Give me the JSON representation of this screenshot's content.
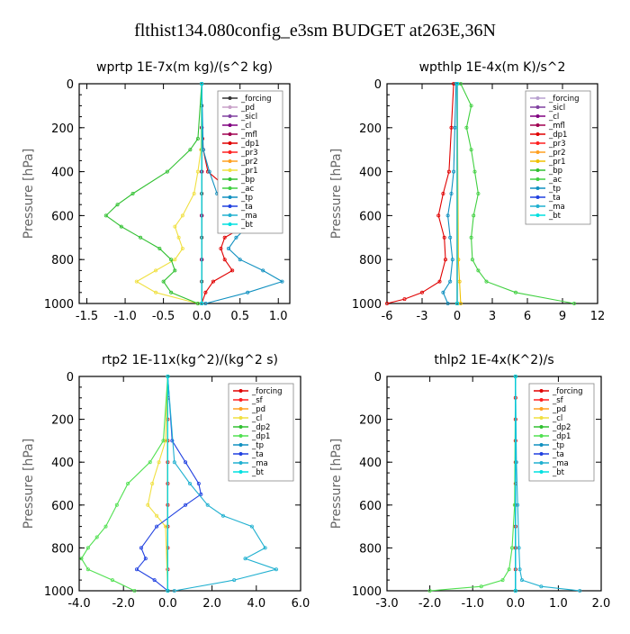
{
  "figure_title": "flthist134.080config_e3sm  BUDGET at263E,36N",
  "chart_data": [
    {
      "type": "line",
      "title": "wprtp   1E-7x(m kg)/(s^2 kg)",
      "ylabel": "Pressure [hPa]",
      "xlim": [
        -1.6,
        1.15
      ],
      "ylim": [
        1000,
        0
      ],
      "xticks": [
        -1.5,
        -1.0,
        -0.5,
        0.0,
        0.5,
        1.0
      ],
      "xtick_labels": [
        "-1.5",
        "-1.0",
        "-0.5",
        "0.0",
        "0.5",
        "1.0"
      ],
      "yticks": [
        0,
        200,
        400,
        600,
        800,
        1000
      ],
      "legend_position": "top-right",
      "series": [
        {
          "name": "_forcing",
          "color": "#333333",
          "y": [
            0,
            100,
            200,
            300,
            400,
            500,
            600,
            700,
            800,
            900,
            1000
          ],
          "x": [
            0,
            0,
            0,
            0,
            0,
            0,
            0,
            0,
            0,
            0,
            0
          ]
        },
        {
          "name": "_pd",
          "color": "#c8a0c8",
          "y": [
            0,
            200,
            400,
            600,
            800,
            1000
          ],
          "x": [
            0,
            0,
            0,
            0,
            0,
            0
          ]
        },
        {
          "name": "_sicl",
          "color": "#8040a0",
          "y": [
            0,
            200,
            400,
            600,
            800,
            1000
          ],
          "x": [
            0,
            0,
            0,
            0,
            0,
            0
          ]
        },
        {
          "name": "_cl",
          "color": "#800080",
          "y": [
            0,
            200,
            400,
            600,
            800,
            1000
          ],
          "x": [
            0,
            0,
            0,
            0,
            0,
            0
          ]
        },
        {
          "name": "_mfl",
          "color": "#a00050",
          "y": [
            0,
            200,
            400,
            600,
            800,
            1000
          ],
          "x": [
            0,
            0,
            0,
            0,
            0,
            0
          ]
        },
        {
          "name": "_dp1",
          "color": "#e00000",
          "y": [
            0,
            250,
            300,
            400,
            450,
            500,
            550,
            600,
            650,
            700,
            750,
            800,
            850,
            900,
            950,
            1000
          ],
          "x": [
            0,
            0.01,
            0.02,
            0.08,
            0.25,
            0.45,
            0.65,
            0.75,
            0.55,
            0.3,
            0.25,
            0.3,
            0.4,
            0.15,
            0.05,
            0
          ]
        },
        {
          "name": "_pr3",
          "color": "#ff2020",
          "y": [
            0,
            1000
          ],
          "x": [
            0,
            0
          ]
        },
        {
          "name": "_pr2",
          "color": "#ffa020",
          "y": [
            0,
            1000
          ],
          "x": [
            0,
            0
          ]
        },
        {
          "name": "_pr1",
          "color": "#f0e040",
          "y": [
            0,
            300,
            400,
            500,
            600,
            650,
            700,
            750,
            800,
            850,
            900,
            950,
            1000
          ],
          "x": [
            0,
            -0.01,
            -0.05,
            -0.1,
            -0.25,
            -0.35,
            -0.3,
            -0.25,
            -0.35,
            -0.6,
            -0.85,
            -0.6,
            -0.05
          ]
        },
        {
          "name": "_bp",
          "color": "#30c030",
          "y": [
            0,
            250,
            300,
            400,
            500,
            550,
            600,
            650,
            700,
            750,
            800,
            850,
            900,
            950,
            1000
          ],
          "x": [
            0,
            -0.05,
            -0.15,
            -0.45,
            -0.9,
            -1.1,
            -1.25,
            -1.05,
            -0.8,
            -0.55,
            -0.4,
            -0.35,
            -0.5,
            -0.4,
            -0.05
          ]
        },
        {
          "name": "_ac",
          "color": "#40d040",
          "y": [
            0,
            1000
          ],
          "x": [
            0,
            0
          ]
        },
        {
          "name": "_tp",
          "color": "#1090c0",
          "y": [
            0,
            300,
            400,
            500,
            550,
            600,
            650,
            700,
            750,
            800,
            850,
            900,
            950,
            1000
          ],
          "x": [
            0,
            0.02,
            0.1,
            0.2,
            0.35,
            0.55,
            0.6,
            0.45,
            0.35,
            0.5,
            0.8,
            1.05,
            0.6,
            0.05
          ]
        },
        {
          "name": "_ta",
          "color": "#2040e0",
          "y": [
            0,
            1000
          ],
          "x": [
            0,
            0
          ]
        },
        {
          "name": "_ma",
          "color": "#20b0d0",
          "y": [
            0,
            1000
          ],
          "x": [
            0,
            0
          ]
        },
        {
          "name": "_bt",
          "color": "#00e0e0",
          "y": [
            0,
            1000
          ],
          "x": [
            0,
            0
          ]
        }
      ]
    },
    {
      "type": "line",
      "title": "wpthlp   1E-4x(m K)/s^2",
      "ylabel": "Pressure [hPa]",
      "xlim": [
        -6,
        12
      ],
      "ylim": [
        1000,
        0
      ],
      "xticks": [
        -6,
        -3,
        0,
        3,
        6,
        9,
        12
      ],
      "xtick_labels": [
        "-6",
        "-3",
        "0",
        "3",
        "6",
        "9",
        "12"
      ],
      "yticks": [
        0,
        200,
        400,
        600,
        800,
        1000
      ],
      "legend_position": "top-right",
      "series": [
        {
          "name": "_forcing",
          "color": "#b8a0d0",
          "y": [
            0,
            1000
          ],
          "x": [
            0,
            0
          ]
        },
        {
          "name": "_sicl",
          "color": "#8040a0",
          "y": [
            0,
            1000
          ],
          "x": [
            0,
            0
          ]
        },
        {
          "name": "_cl",
          "color": "#800080",
          "y": [
            0,
            1000
          ],
          "x": [
            0,
            0
          ]
        },
        {
          "name": "_mfl",
          "color": "#a00050",
          "y": [
            0,
            1000
          ],
          "x": [
            0,
            0
          ]
        },
        {
          "name": "_dp1",
          "color": "#e00000",
          "y": [
            0,
            200,
            400,
            500,
            600,
            700,
            800,
            900,
            950,
            980,
            1000
          ],
          "x": [
            -0.3,
            -0.5,
            -0.7,
            -1.2,
            -1.6,
            -1.1,
            -1.0,
            -1.5,
            -3.0,
            -4.5,
            -6.0
          ]
        },
        {
          "name": "_pr3",
          "color": "#ff2020",
          "y": [
            0,
            1000
          ],
          "x": [
            0,
            0
          ]
        },
        {
          "name": "_pr2",
          "color": "#ffa020",
          "y": [
            0,
            1000
          ],
          "x": [
            0,
            0
          ]
        },
        {
          "name": "_pr1",
          "color": "#f0c000",
          "y": [
            0,
            800,
            900,
            1000
          ],
          "x": [
            0,
            0.1,
            0.2,
            0.3
          ]
        },
        {
          "name": "_bp",
          "color": "#30c030",
          "y": [
            0,
            1000
          ],
          "x": [
            0,
            0
          ]
        },
        {
          "name": "_ac",
          "color": "#40d040",
          "y": [
            0,
            100,
            200,
            300,
            400,
            500,
            600,
            700,
            800,
            850,
            900,
            950,
            1000
          ],
          "x": [
            0.3,
            1.2,
            0.8,
            1.2,
            1.5,
            1.8,
            1.4,
            1.2,
            1.3,
            1.8,
            2.5,
            5.0,
            10.0
          ]
        },
        {
          "name": "_tp",
          "color": "#1090c0",
          "y": [
            0,
            200,
            400,
            500,
            600,
            700,
            800,
            900,
            950,
            1000
          ],
          "x": [
            -0.1,
            -0.2,
            -0.3,
            -0.5,
            -0.8,
            -0.6,
            -0.4,
            -0.6,
            -1.2,
            -0.8
          ]
        },
        {
          "name": "_ta",
          "color": "#2040e0",
          "y": [
            0,
            1000
          ],
          "x": [
            0,
            0
          ]
        },
        {
          "name": "_ma",
          "color": "#20b0d0",
          "y": [
            0,
            1000
          ],
          "x": [
            0,
            0
          ]
        },
        {
          "name": "_bt",
          "color": "#00e0e0",
          "y": [
            0,
            1000
          ],
          "x": [
            0,
            0
          ]
        }
      ]
    },
    {
      "type": "line",
      "title": "rtp2   1E-11x(kg^2)/(kg^2 s)",
      "ylabel": "Pressure [hPa]",
      "xlim": [
        -4.0,
        6.0
      ],
      "ylim": [
        1000,
        0
      ],
      "xticks": [
        -4.0,
        -2.0,
        0.0,
        2.0,
        4.0,
        6.0
      ],
      "xtick_labels": [
        "-4.0",
        "-2.0",
        "0.0",
        "2.0",
        "4.0",
        "6.0"
      ],
      "yticks": [
        0,
        200,
        400,
        600,
        800,
        1000
      ],
      "legend_position": "top-right",
      "series": [
        {
          "name": "_forcing",
          "color": "#e00000",
          "y": [
            0,
            100,
            200,
            300,
            400,
            500,
            600,
            700,
            800,
            900,
            1000
          ],
          "x": [
            0,
            0,
            0,
            0,
            0,
            0,
            0,
            0,
            0,
            0,
            0
          ]
        },
        {
          "name": "_sf",
          "color": "#ff2020",
          "y": [
            0,
            1000
          ],
          "x": [
            0,
            0
          ]
        },
        {
          "name": "_pd",
          "color": "#ffa020",
          "y": [
            0,
            1000
          ],
          "x": [
            0,
            0
          ]
        },
        {
          "name": "_cl",
          "color": "#f0e040",
          "y": [
            0,
            300,
            400,
            500,
            600,
            650,
            700,
            1000
          ],
          "x": [
            0,
            -0.1,
            -0.4,
            -0.7,
            -0.9,
            -0.5,
            -0.1,
            0
          ]
        },
        {
          "name": "_dp2",
          "color": "#30c030",
          "y": [
            0,
            1000
          ],
          "x": [
            0,
            0
          ]
        },
        {
          "name": "_dp1",
          "color": "#50e050",
          "y": [
            0,
            300,
            400,
            500,
            600,
            700,
            750,
            800,
            850,
            900,
            950,
            1000
          ],
          "x": [
            0,
            -0.2,
            -0.8,
            -1.8,
            -2.3,
            -2.8,
            -3.2,
            -3.6,
            -3.9,
            -3.6,
            -2.5,
            -1.5
          ]
        },
        {
          "name": "_tp",
          "color": "#1090c0",
          "y": [
            0,
            1000
          ],
          "x": [
            0,
            0
          ]
        },
        {
          "name": "_ta",
          "color": "#2040e0",
          "y": [
            0,
            300,
            400,
            500,
            550,
            600,
            700,
            800,
            850,
            900,
            950,
            1000
          ],
          "x": [
            0,
            0.2,
            0.8,
            1.4,
            1.5,
            0.8,
            -0.5,
            -1.2,
            -1.0,
            -1.4,
            -0.6,
            0
          ]
        },
        {
          "name": "_ma",
          "color": "#20b0d0",
          "y": [
            0,
            400,
            500,
            600,
            650,
            700,
            800,
            850,
            900,
            950,
            1000
          ],
          "x": [
            0,
            0.3,
            1.0,
            1.8,
            2.5,
            3.8,
            4.4,
            3.5,
            4.9,
            3.0,
            0.3
          ]
        },
        {
          "name": "_bt",
          "color": "#00e0e0",
          "y": [
            0,
            1000
          ],
          "x": [
            0,
            0
          ]
        }
      ]
    },
    {
      "type": "line",
      "title": "thlp2   1E-4x(K^2)/s",
      "ylabel": "Pressure [hPa]",
      "xlim": [
        -3.0,
        2.0
      ],
      "ylim": [
        1000,
        0
      ],
      "xticks": [
        -3.0,
        -2.0,
        -1.0,
        0.0,
        1.0,
        2.0
      ],
      "xtick_labels": [
        "-3.0",
        "-2.0",
        "-1.0",
        "0.0",
        "1.0",
        "2.0"
      ],
      "yticks": [
        0,
        200,
        400,
        600,
        800,
        1000
      ],
      "legend_position": "top-right",
      "series": [
        {
          "name": "_forcing",
          "color": "#e00000",
          "y": [
            0,
            100,
            200,
            300,
            400,
            500,
            600,
            700,
            800,
            900,
            1000
          ],
          "x": [
            0,
            0,
            0,
            0,
            0,
            0,
            0,
            0,
            0,
            0,
            0
          ]
        },
        {
          "name": "_sf",
          "color": "#ff2020",
          "y": [
            0,
            1000
          ],
          "x": [
            0,
            0
          ]
        },
        {
          "name": "_pd",
          "color": "#ffa020",
          "y": [
            0,
            1000
          ],
          "x": [
            0,
            0
          ]
        },
        {
          "name": "_cl",
          "color": "#f0e040",
          "y": [
            0,
            1000
          ],
          "x": [
            0,
            0
          ]
        },
        {
          "name": "_dp2",
          "color": "#30c030",
          "y": [
            0,
            1000
          ],
          "x": [
            0,
            0
          ]
        },
        {
          "name": "_dp1",
          "color": "#50e050",
          "y": [
            0,
            600,
            800,
            900,
            950,
            980,
            1000
          ],
          "x": [
            0,
            -0.02,
            -0.08,
            -0.15,
            -0.3,
            -0.8,
            -2.0
          ]
        },
        {
          "name": "_tp",
          "color": "#1090c0",
          "y": [
            0,
            1000
          ],
          "x": [
            0,
            0
          ]
        },
        {
          "name": "_ta",
          "color": "#2040e0",
          "y": [
            0,
            1000
          ],
          "x": [
            0,
            0
          ]
        },
        {
          "name": "_ma",
          "color": "#20b0d0",
          "y": [
            0,
            400,
            600,
            800,
            900,
            950,
            980,
            1000
          ],
          "x": [
            0,
            0.02,
            0.05,
            0.08,
            0.1,
            0.15,
            0.6,
            1.5
          ]
        },
        {
          "name": "_bt",
          "color": "#00e0e0",
          "y": [
            0,
            1000
          ],
          "x": [
            0,
            0
          ]
        }
      ]
    }
  ]
}
